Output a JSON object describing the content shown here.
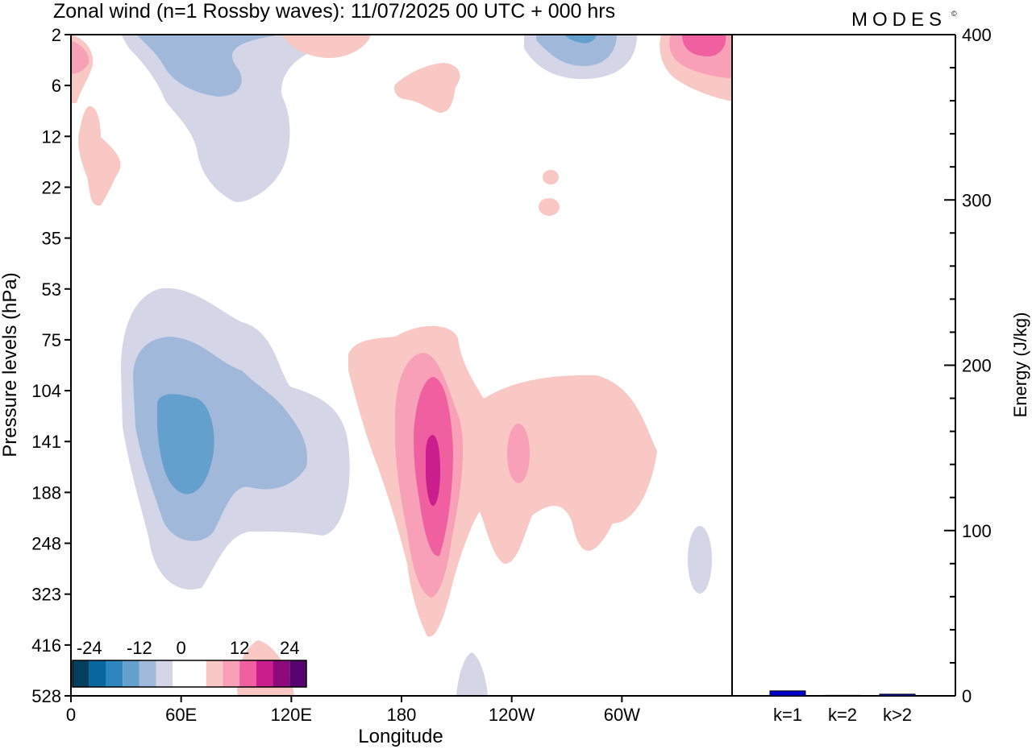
{
  "brand": "MODES",
  "brand_mark": "©",
  "chart_data": [
    {
      "type": "heatmap",
      "title": "Zonal wind (n=1 Rossby waves):  11/07/2025  00 UTC  + 000 hrs",
      "xlabel": "Longitude",
      "ylabel": "Pressure levels (hPa)",
      "x_ticks": [
        "0",
        "60E",
        "120E",
        "180",
        "120W",
        "60W"
      ],
      "y_ticks": [
        "2",
        "6",
        "12",
        "22",
        "35",
        "53",
        "75",
        "104",
        "141",
        "188",
        "248",
        "323",
        "416",
        "528"
      ],
      "colorbar": {
        "labels": [
          "-24",
          "-12",
          "0",
          "12",
          "24"
        ],
        "colors": [
          "#053f5e",
          "#07689f",
          "#2e86c1",
          "#64a0ce",
          "#a0b8da",
          "#d4d6e8",
          "#ffffff",
          "#ffffff",
          "#f9c8c4",
          "#f7a0b8",
          "#f05fa0",
          "#c91e8c",
          "#8c0a7c",
          "#560470"
        ]
      },
      "features": [
        {
          "name": "negative-wind-region-lower-west",
          "sign": "negative",
          "lon_center": 60,
          "level_center": 141,
          "min_value": -12
        },
        {
          "name": "positive-wind-jet-near-dateline",
          "sign": "positive",
          "lon_center": 190,
          "level_center": 141,
          "max_value": 20
        },
        {
          "name": "positive-wind-region-upper-east",
          "sign": "positive",
          "lon_center": 315,
          "level_center": 2,
          "max_value": 12
        },
        {
          "name": "negative-wind-region-upper-west",
          "sign": "negative",
          "lon_center": 55,
          "level_center": 6,
          "min_value": -6
        }
      ]
    },
    {
      "type": "bar",
      "title": "",
      "xlabel": "",
      "ylabel": "Energy (J/kg)",
      "categories": [
        "k=1",
        "k=2",
        "k>2"
      ],
      "values": [
        3,
        0.3,
        1
      ],
      "ylim": [
        0,
        400
      ],
      "y_ticks": [
        "0",
        "100",
        "200",
        "300",
        "400"
      ],
      "bar_color": "#0000cc"
    }
  ]
}
